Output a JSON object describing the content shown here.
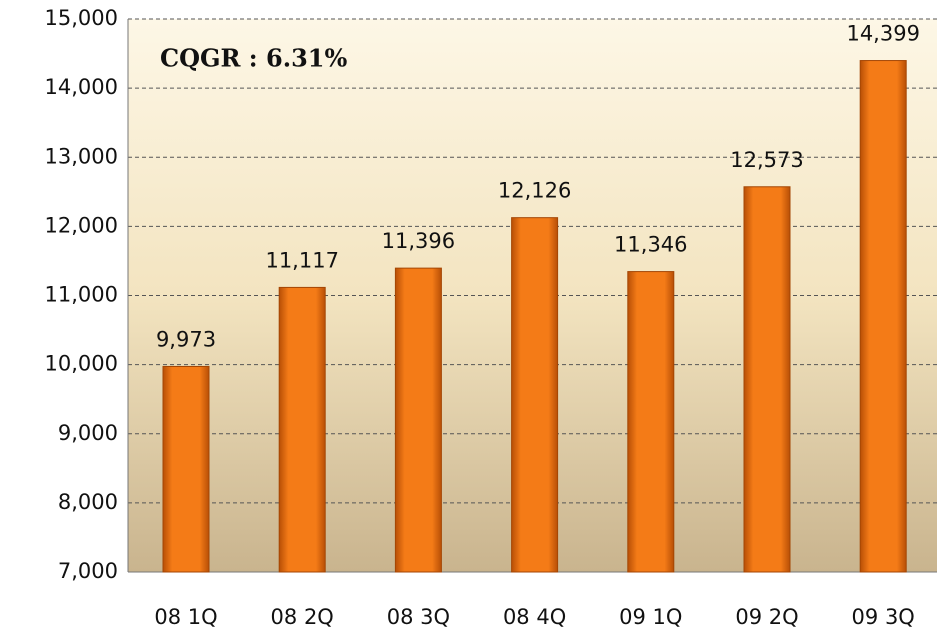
{
  "chart_data": {
    "type": "bar",
    "annotation": "CQGR : 6.31%",
    "categories": [
      "08 1Q",
      "08 2Q",
      "08 3Q",
      "08 4Q",
      "09 1Q",
      "09 2Q",
      "09 3Q"
    ],
    "values": [
      9973,
      11117,
      11396,
      12126,
      11346,
      12573,
      14399
    ],
    "value_labels": [
      "9,973",
      "11,117",
      "11,396",
      "12,126",
      "11,346",
      "12,573",
      "14,399"
    ],
    "color": "#f07813",
    "ylim": [
      7000,
      15000
    ],
    "yticks": [
      {
        "value": 7000,
        "label": "7,000"
      },
      {
        "value": 8000,
        "label": "8,000"
      },
      {
        "value": 9000,
        "label": "9,000"
      },
      {
        "value": 10000,
        "label": "10,000"
      },
      {
        "value": 11000,
        "label": "11,000"
      },
      {
        "value": 12000,
        "label": "12,000"
      },
      {
        "value": 13000,
        "label": "13,000"
      },
      {
        "value": 14000,
        "label": "14,000"
      },
      {
        "value": 15000,
        "label": "15,000"
      }
    ],
    "grid": true
  }
}
